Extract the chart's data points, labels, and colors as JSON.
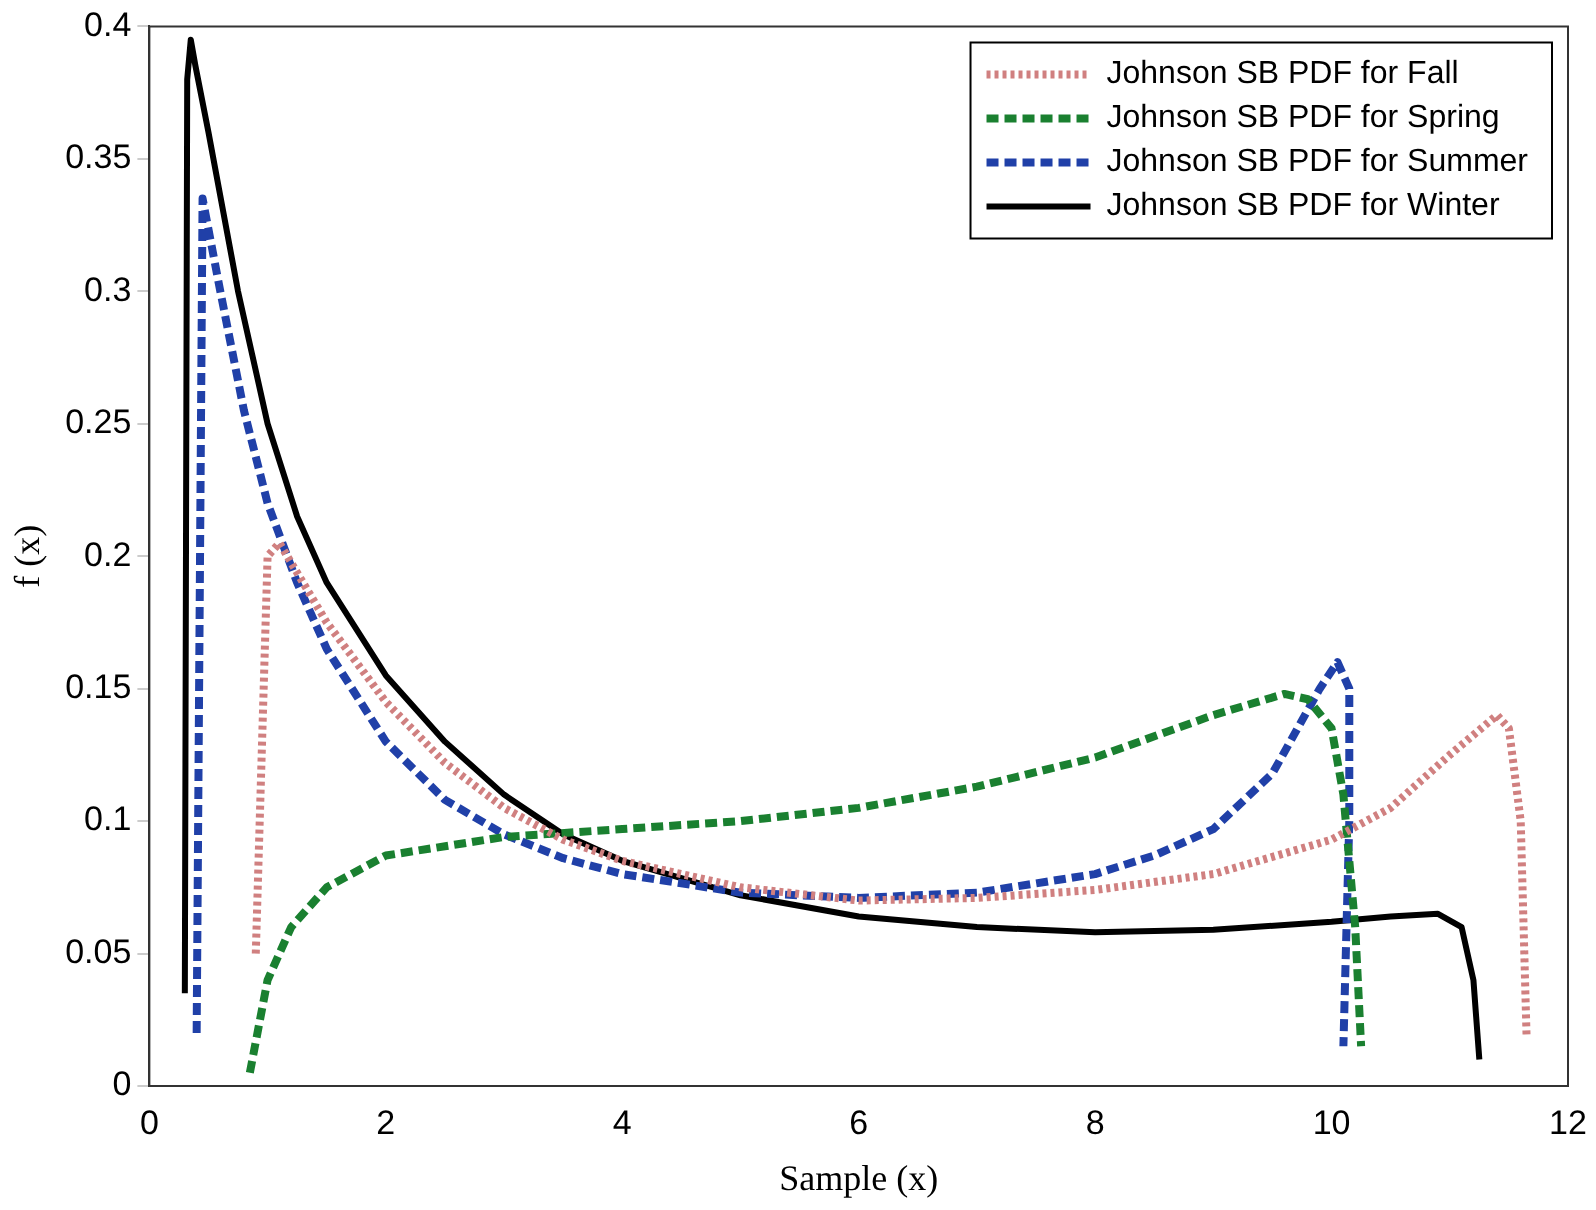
{
  "chart_data": {
    "type": "line",
    "xlabel": "Sample (x)",
    "ylabel": "f (x)",
    "xlim": [
      0,
      12
    ],
    "xticks": [
      0,
      2,
      4,
      6,
      8,
      10,
      12
    ],
    "ylim": [
      0,
      0.4
    ],
    "yticks": [
      0,
      0.05,
      0.1,
      0.15,
      0.2,
      0.25,
      0.3,
      0.35,
      0.4
    ],
    "grid": false,
    "legend": "top right",
    "marker": "none",
    "series": [
      {
        "name": "Johnson SB PDF for Fall",
        "color": "#d08080",
        "line_style": "dotted",
        "x": [
          0.9,
          1.0,
          1.1,
          1.5,
          2,
          2.5,
          3,
          3.5,
          4,
          5,
          6,
          7,
          8,
          9,
          10,
          10.5,
          11,
          11.4,
          11.5,
          11.6,
          11.65
        ],
        "values": [
          0.05,
          0.2,
          0.205,
          0.175,
          0.145,
          0.122,
          0.105,
          0.093,
          0.085,
          0.075,
          0.07,
          0.071,
          0.074,
          0.08,
          0.093,
          0.105,
          0.125,
          0.14,
          0.135,
          0.1,
          0.018
        ]
      },
      {
        "name": "Johnson SB PDF for Spring",
        "color": "#1a8030",
        "line_style": "dashed",
        "x": [
          0.85,
          1,
          1.2,
          1.5,
          2,
          3,
          4,
          5,
          6,
          7,
          8,
          9,
          9.6,
          9.8,
          10,
          10.1,
          10.2,
          10.25
        ],
        "values": [
          0.005,
          0.04,
          0.06,
          0.075,
          0.087,
          0.094,
          0.097,
          0.1,
          0.105,
          0.113,
          0.124,
          0.14,
          0.148,
          0.146,
          0.135,
          0.11,
          0.06,
          0.015
        ]
      },
      {
        "name": "Johnson SB PDF for Summer",
        "color": "#2040a8",
        "line_style": "dashed",
        "x": [
          0.4,
          0.45,
          0.6,
          0.8,
          1,
          1.25,
          1.5,
          2,
          2.5,
          3,
          3.5,
          4,
          5,
          6,
          7,
          8,
          8.5,
          9,
          9.5,
          9.9,
          10.05,
          10.15,
          10.15,
          10.1
        ],
        "values": [
          0.02,
          0.335,
          0.3,
          0.255,
          0.22,
          0.19,
          0.165,
          0.13,
          0.108,
          0.095,
          0.086,
          0.08,
          0.073,
          0.071,
          0.073,
          0.08,
          0.087,
          0.097,
          0.118,
          0.15,
          0.16,
          0.15,
          0.1,
          0.015
        ]
      },
      {
        "name": "Johnson SB PDF for Winter",
        "color": "#000000",
        "line_style": "solid",
        "x": [
          0.3,
          0.32,
          0.35,
          0.39,
          0.5,
          0.75,
          1,
          1.25,
          1.5,
          2,
          2.5,
          3,
          3.5,
          4,
          5,
          6,
          7,
          8,
          9,
          10,
          10.5,
          10.9,
          11.1,
          11.2,
          11.25
        ],
        "values": [
          0.035,
          0.38,
          0.395,
          0.385,
          0.36,
          0.3,
          0.25,
          0.215,
          0.19,
          0.155,
          0.13,
          0.11,
          0.095,
          0.085,
          0.072,
          0.064,
          0.06,
          0.058,
          0.059,
          0.062,
          0.064,
          0.065,
          0.06,
          0.04,
          0.01
        ]
      }
    ]
  }
}
